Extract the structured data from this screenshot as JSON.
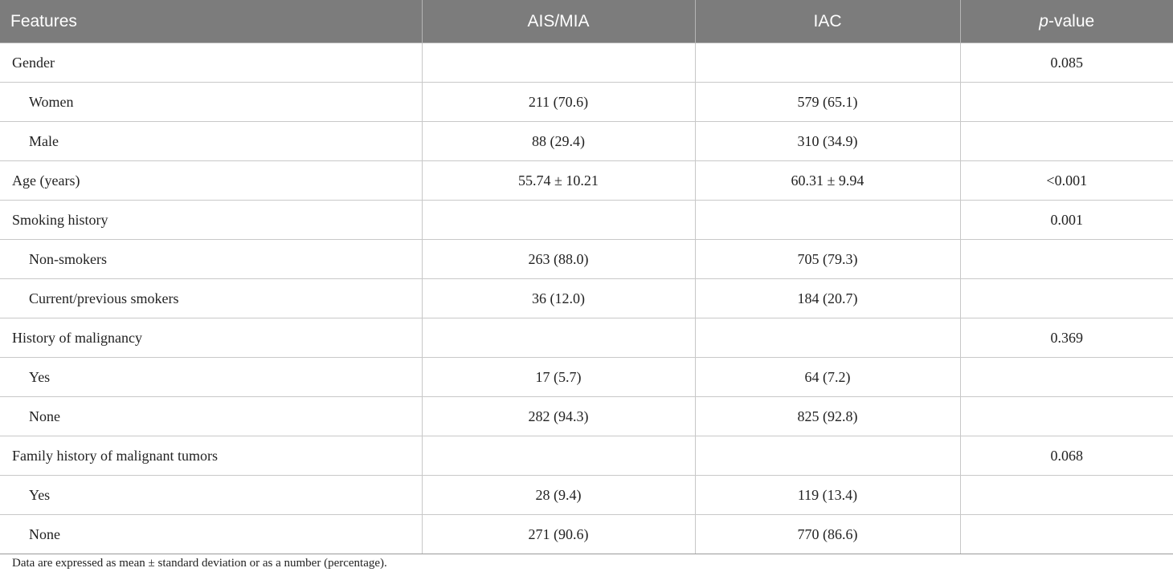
{
  "table": {
    "headers": {
      "features": "Features",
      "group1": "AIS/MIA",
      "group2": "IAC",
      "pvalue_italic": "p",
      "pvalue_rest": "-value"
    },
    "rows": [
      {
        "label": "Gender",
        "indent": false,
        "c1": "",
        "c2": "",
        "p": "0.085"
      },
      {
        "label": "Women",
        "indent": true,
        "c1": "211 (70.6)",
        "c2": "579 (65.1)",
        "p": ""
      },
      {
        "label": "Male",
        "indent": true,
        "c1": "88 (29.4)",
        "c2": "310 (34.9)",
        "p": ""
      },
      {
        "label": "Age (years)",
        "indent": false,
        "c1": "55.74 ± 10.21",
        "c2": "60.31 ± 9.94",
        "p": "<0.001"
      },
      {
        "label": "Smoking history",
        "indent": false,
        "c1": "",
        "c2": "",
        "p": "0.001"
      },
      {
        "label": "Non-smokers",
        "indent": true,
        "c1": "263 (88.0)",
        "c2": "705 (79.3)",
        "p": ""
      },
      {
        "label": "Current/previous smokers",
        "indent": true,
        "c1": "36 (12.0)",
        "c2": "184 (20.7)",
        "p": ""
      },
      {
        "label": "History of malignancy",
        "indent": false,
        "c1": "",
        "c2": "",
        "p": "0.369"
      },
      {
        "label": "Yes",
        "indent": true,
        "c1": "17 (5.7)",
        "c2": "64 (7.2)",
        "p": ""
      },
      {
        "label": "None",
        "indent": true,
        "c1": "282 (94.3)",
        "c2": "825 (92.8)",
        "p": ""
      },
      {
        "label": "Family history of malignant tumors",
        "indent": false,
        "c1": "",
        "c2": "",
        "p": "0.068"
      },
      {
        "label": "Yes",
        "indent": true,
        "c1": "28 (9.4)",
        "c2": "119 (13.4)",
        "p": ""
      },
      {
        "label": "None",
        "indent": true,
        "c1": "271 (90.6)",
        "c2": "770 (86.6)",
        "p": ""
      }
    ]
  },
  "footnote": "Data are expressed as mean ± standard deviation or as a number (percentage).",
  "colors": {
    "header_bg": "#7c7c7c",
    "header_text": "#ffffff",
    "grid": "#c8c8c8"
  }
}
